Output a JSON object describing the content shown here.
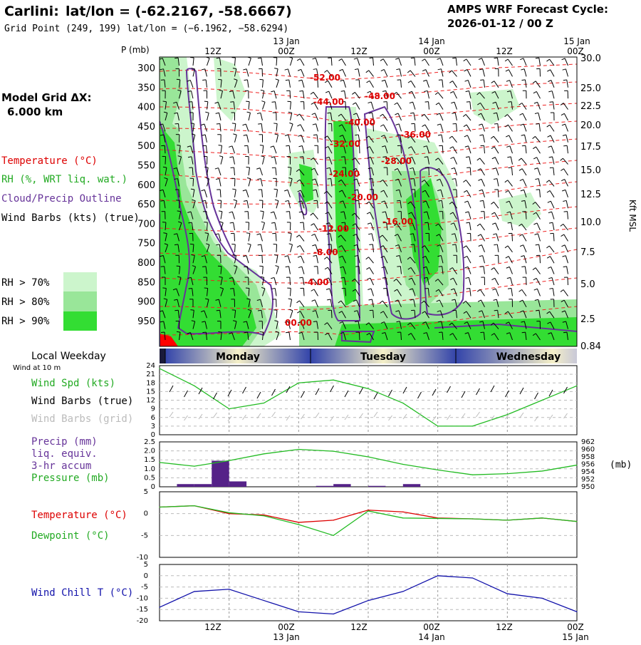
{
  "header": {
    "station": "Carlini:",
    "station_coords": "lat/lon = (-62.2167, -58.6667)",
    "grid_point": "Grid Point (249, 199) lat/lon = (−6.1962, −58.6294)",
    "model_title": "AMPS WRF Forecast Cycle:",
    "cycle": "2026-01-12 / 00  Z"
  },
  "left_legend": {
    "model_grid_label": "Model Grid ΔX:",
    "model_grid_value": "6.000 km",
    "temperature": "Temperature (°C)",
    "rh": "RH (%, WRT liq. wat.)",
    "cloud": "Cloud/Precip Outline",
    "wind": "Wind Barbs (kts) (true)",
    "rh70": "RH > 70%",
    "rh80": "RH > 80%",
    "rh90": "RH > 90%",
    "local_weekday": "Local Weekday",
    "wind_10m": "Wind at 10 m",
    "wind_spd": "Wind Spd (kts)",
    "wind_barbs_true": "Wind Barbs (true)",
    "wind_barbs_grid": "Wind Barbs (grid)",
    "precip": "Precip (mm)",
    "liq": "liq. equiv.",
    "accum": "3-hr accum",
    "pressure": "Pressure (mb)",
    "temp2": "Temperature (°C)",
    "dewpoint": "Dewpoint (°C)",
    "windchill": "Wind Chill T (°C)",
    "mb_unit": "(mb)"
  },
  "colors": {
    "rh70": "#ccf5cc",
    "rh80": "#99e699",
    "rh90": "#33dd33",
    "temperature": "#dd0000",
    "cloud": "#663399",
    "green_line": "#22bb22",
    "precip_bar": "#552288",
    "wind_chill": "#1111aa"
  },
  "time_axis": {
    "top_dates": [
      "13 Jan",
      "14 Jan",
      "15 Jan"
    ],
    "top_ticks": [
      "12Z",
      "00Z",
      "12Z",
      "00Z",
      "12Z",
      "00Z"
    ],
    "bottom_ticks": [
      "12Z",
      "00Z",
      "12Z",
      "00Z",
      "12Z",
      "00Z"
    ],
    "bottom_dates": [
      "13 Jan",
      "14 Jan",
      "15 Jan"
    ]
  },
  "weekdays": [
    "Monday",
    "Tuesday",
    "Wednesday"
  ],
  "cross_section": {
    "p_label": "P (mb)",
    "kft_label": "Kft MSL",
    "pressure_ticks": [
      "300",
      "350",
      "400",
      "450",
      "500",
      "550",
      "600",
      "650",
      "700",
      "750",
      "800",
      "850",
      "900",
      "950"
    ],
    "height_ticks": [
      "30.0",
      "25.0",
      "22.5",
      "20.0",
      "17.5",
      "15.0",
      "12.5",
      "10.0",
      "7.5",
      "5.0",
      "2.5",
      "0.84"
    ],
    "temp_labels": [
      "-52.00",
      "-48.00",
      "-44.00",
      "-40.00",
      "-36.00",
      "-32.00",
      "-28.00",
      "-24.00",
      "-20.00",
      "-16.00",
      "-12.00",
      "-8.00",
      "-4.00",
      "00.00"
    ]
  },
  "chart_data": [
    {
      "type": "line",
      "title": "Wind Spd (kts)",
      "x_hours": [
        0,
        6,
        12,
        18,
        24,
        30,
        36,
        42,
        48,
        54,
        60,
        66,
        72
      ],
      "series": [
        {
          "name": "Wind Spd (kts)",
          "values": [
            23,
            17,
            9,
            11,
            18,
            19,
            16,
            11,
            3,
            3,
            7,
            12,
            17
          ]
        }
      ],
      "ylim": [
        0,
        24
      ],
      "yticks": [
        "24",
        "21",
        "18",
        "15",
        "12",
        "9",
        "6",
        "3",
        "0"
      ]
    },
    {
      "type": "bar",
      "title": "Precip (mm)",
      "bars_hours": [
        3,
        6,
        9,
        12,
        15,
        18,
        21,
        24,
        27,
        30,
        33,
        36,
        39,
        42,
        45,
        48
      ],
      "precip_values": [
        0.0,
        0.15,
        0.15,
        1.45,
        0.3,
        0.0,
        0.0,
        0.0,
        0.0,
        0.05,
        0.15,
        0.0,
        0.05,
        0.0,
        0.15,
        0.0
      ],
      "pressure_series": [
        {
          "name": "Pressure (mb)",
          "x_hours": [
            0,
            6,
            12,
            18,
            24,
            30,
            36,
            42,
            48,
            54,
            60,
            66,
            72
          ],
          "values": [
            956.5,
            955.5,
            957.0,
            958.8,
            960.0,
            959.5,
            958.0,
            956.0,
            954.5,
            953.2,
            953.5,
            954.2,
            955.8
          ]
        }
      ],
      "precip_ylim": [
        0,
        2.5
      ],
      "pressure_ylim": [
        950,
        962
      ],
      "left_ticks": [
        "2.5",
        "2.0",
        "1.5",
        "1.0",
        "0.5",
        "0"
      ],
      "right_ticks": [
        "962",
        "960",
        "958",
        "956",
        "954",
        "952",
        "950"
      ]
    },
    {
      "type": "line",
      "title": "Temperature / Dewpoint",
      "x_hours": [
        0,
        6,
        12,
        18,
        24,
        30,
        36,
        42,
        48,
        54,
        60,
        66,
        72
      ],
      "series": [
        {
          "name": "Temperature (°C)",
          "values": [
            1.5,
            1.8,
            0.0,
            -0.3,
            -2.0,
            -1.5,
            0.8,
            0.4,
            -1.0,
            -1.2,
            -1.5,
            -1.0,
            -1.8
          ]
        },
        {
          "name": "Dewpoint (°C)",
          "values": [
            1.5,
            1.8,
            0.2,
            -0.5,
            -2.5,
            -5.0,
            0.6,
            -1.0,
            -1.1,
            -1.2,
            -1.5,
            -1.0,
            -1.8
          ]
        }
      ],
      "ylim": [
        -10,
        5
      ],
      "yticks": [
        "5",
        "0",
        "-5",
        "-10"
      ]
    },
    {
      "type": "line",
      "title": "Wind Chill T (°C)",
      "x_hours": [
        0,
        6,
        12,
        18,
        24,
        30,
        36,
        42,
        48,
        54,
        60,
        66,
        72
      ],
      "series": [
        {
          "name": "Wind Chill T (°C)",
          "values": [
            -14,
            -7,
            -6,
            -11,
            -16,
            -17,
            -11,
            -7,
            0,
            -1,
            -8,
            -10,
            -16
          ]
        }
      ],
      "ylim": [
        -20,
        5
      ],
      "yticks": [
        "5",
        "0",
        "-5",
        "-10",
        "-15",
        "-20"
      ]
    }
  ]
}
